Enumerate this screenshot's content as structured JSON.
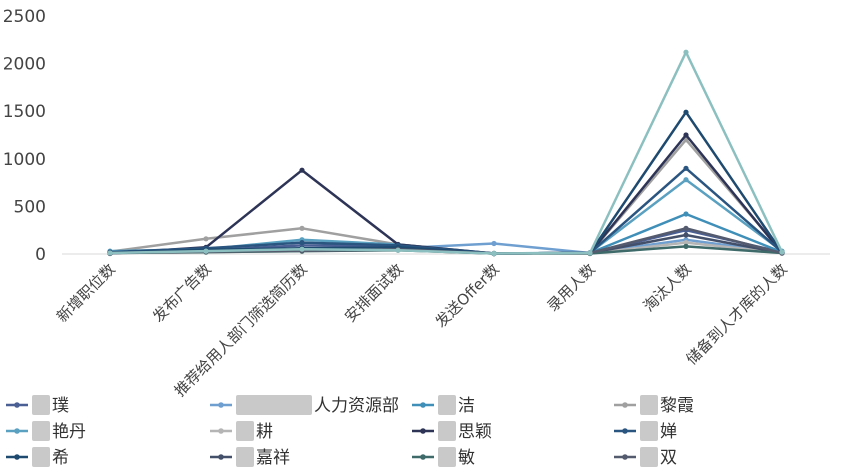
{
  "chart_data": {
    "type": "line",
    "categories": [
      "新增职位数",
      "发布广告数",
      "推荐给用人部门筛选简历数",
      "安排面试数",
      "发送Offer数",
      "录用人数",
      "淘汰人数",
      "储备到人才库的人数"
    ],
    "ylim": [
      0,
      2500
    ],
    "yticks": [
      0,
      500,
      1000,
      1500,
      2000,
      2500
    ],
    "grid": false,
    "legend_position": "bottom",
    "series": [
      {
        "name": "璞",
        "color": "#4a5f94",
        "values": [
          20,
          40,
          90,
          80,
          5,
          10,
          250,
          20
        ]
      },
      {
        "name": "人力资源部",
        "color": "#6f9fd0",
        "values": [
          15,
          30,
          50,
          60,
          110,
          10,
          150,
          15
        ]
      },
      {
        "name": "洁",
        "color": "#3f8fb8",
        "values": [
          15,
          25,
          40,
          50,
          5,
          10,
          420,
          20
        ]
      },
      {
        "name": "黎霞",
        "color": "#a0a0a0",
        "values": [
          25,
          160,
          270,
          100,
          5,
          10,
          1200,
          25
        ]
      },
      {
        "name": "艳丹",
        "color": "#5aa0c0",
        "values": [
          30,
          50,
          150,
          100,
          5,
          15,
          780,
          30
        ]
      },
      {
        "name": "耕",
        "color": "#b5b5b5",
        "values": [
          10,
          20,
          30,
          40,
          5,
          5,
          120,
          10
        ]
      },
      {
        "name": "思颖",
        "color": "#2d3456",
        "values": [
          5,
          70,
          880,
          100,
          5,
          10,
          1250,
          10
        ]
      },
      {
        "name": "婵",
        "color": "#2a5580",
        "values": [
          20,
          60,
          120,
          90,
          5,
          10,
          900,
          20
        ]
      },
      {
        "name": "希",
        "color": "#1f4a70",
        "values": [
          15,
          45,
          60,
          70,
          5,
          10,
          1490,
          15
        ]
      },
      {
        "name": "嘉祥",
        "color": "#44506a",
        "values": [
          10,
          30,
          40,
          50,
          5,
          10,
          200,
          10
        ]
      },
      {
        "name": "敏",
        "color": "#3e6a6a",
        "values": [
          10,
          20,
          30,
          40,
          5,
          5,
          80,
          10
        ]
      },
      {
        "name": "双",
        "color": "#555b6e",
        "values": [
          10,
          25,
          35,
          45,
          5,
          10,
          270,
          10
        ]
      },
      {
        "name": "",
        "color": "#8cc0c0",
        "values": [
          10,
          30,
          50,
          40,
          5,
          10,
          2120,
          20
        ]
      }
    ]
  },
  "legend": {
    "items": [
      {
        "label": "璞",
        "color": "#4a5f94",
        "blur": true
      },
      {
        "label": "人力资源部",
        "color": "#6f9fd0",
        "blur": true
      },
      {
        "label": "洁",
        "color": "#3f8fb8",
        "blur": true
      },
      {
        "label": "黎霞",
        "color": "#a0a0a0",
        "blur": true
      },
      {
        "label": "艳丹",
        "color": "#5aa0c0",
        "blur": true
      },
      {
        "label": "耕",
        "color": "#b5b5b5",
        "blur": true
      },
      {
        "label": "思颖",
        "color": "#2d3456",
        "blur": true
      },
      {
        "label": "婵",
        "color": "#2a5580",
        "blur": true
      },
      {
        "label": "希",
        "color": "#1f4a70",
        "blur": true
      },
      {
        "label": "嘉祥",
        "color": "#44506a",
        "blur": true
      },
      {
        "label": "敏",
        "color": "#3e6a6a",
        "blur": true
      },
      {
        "label": "双",
        "color": "#555b6e",
        "blur": true
      }
    ]
  }
}
